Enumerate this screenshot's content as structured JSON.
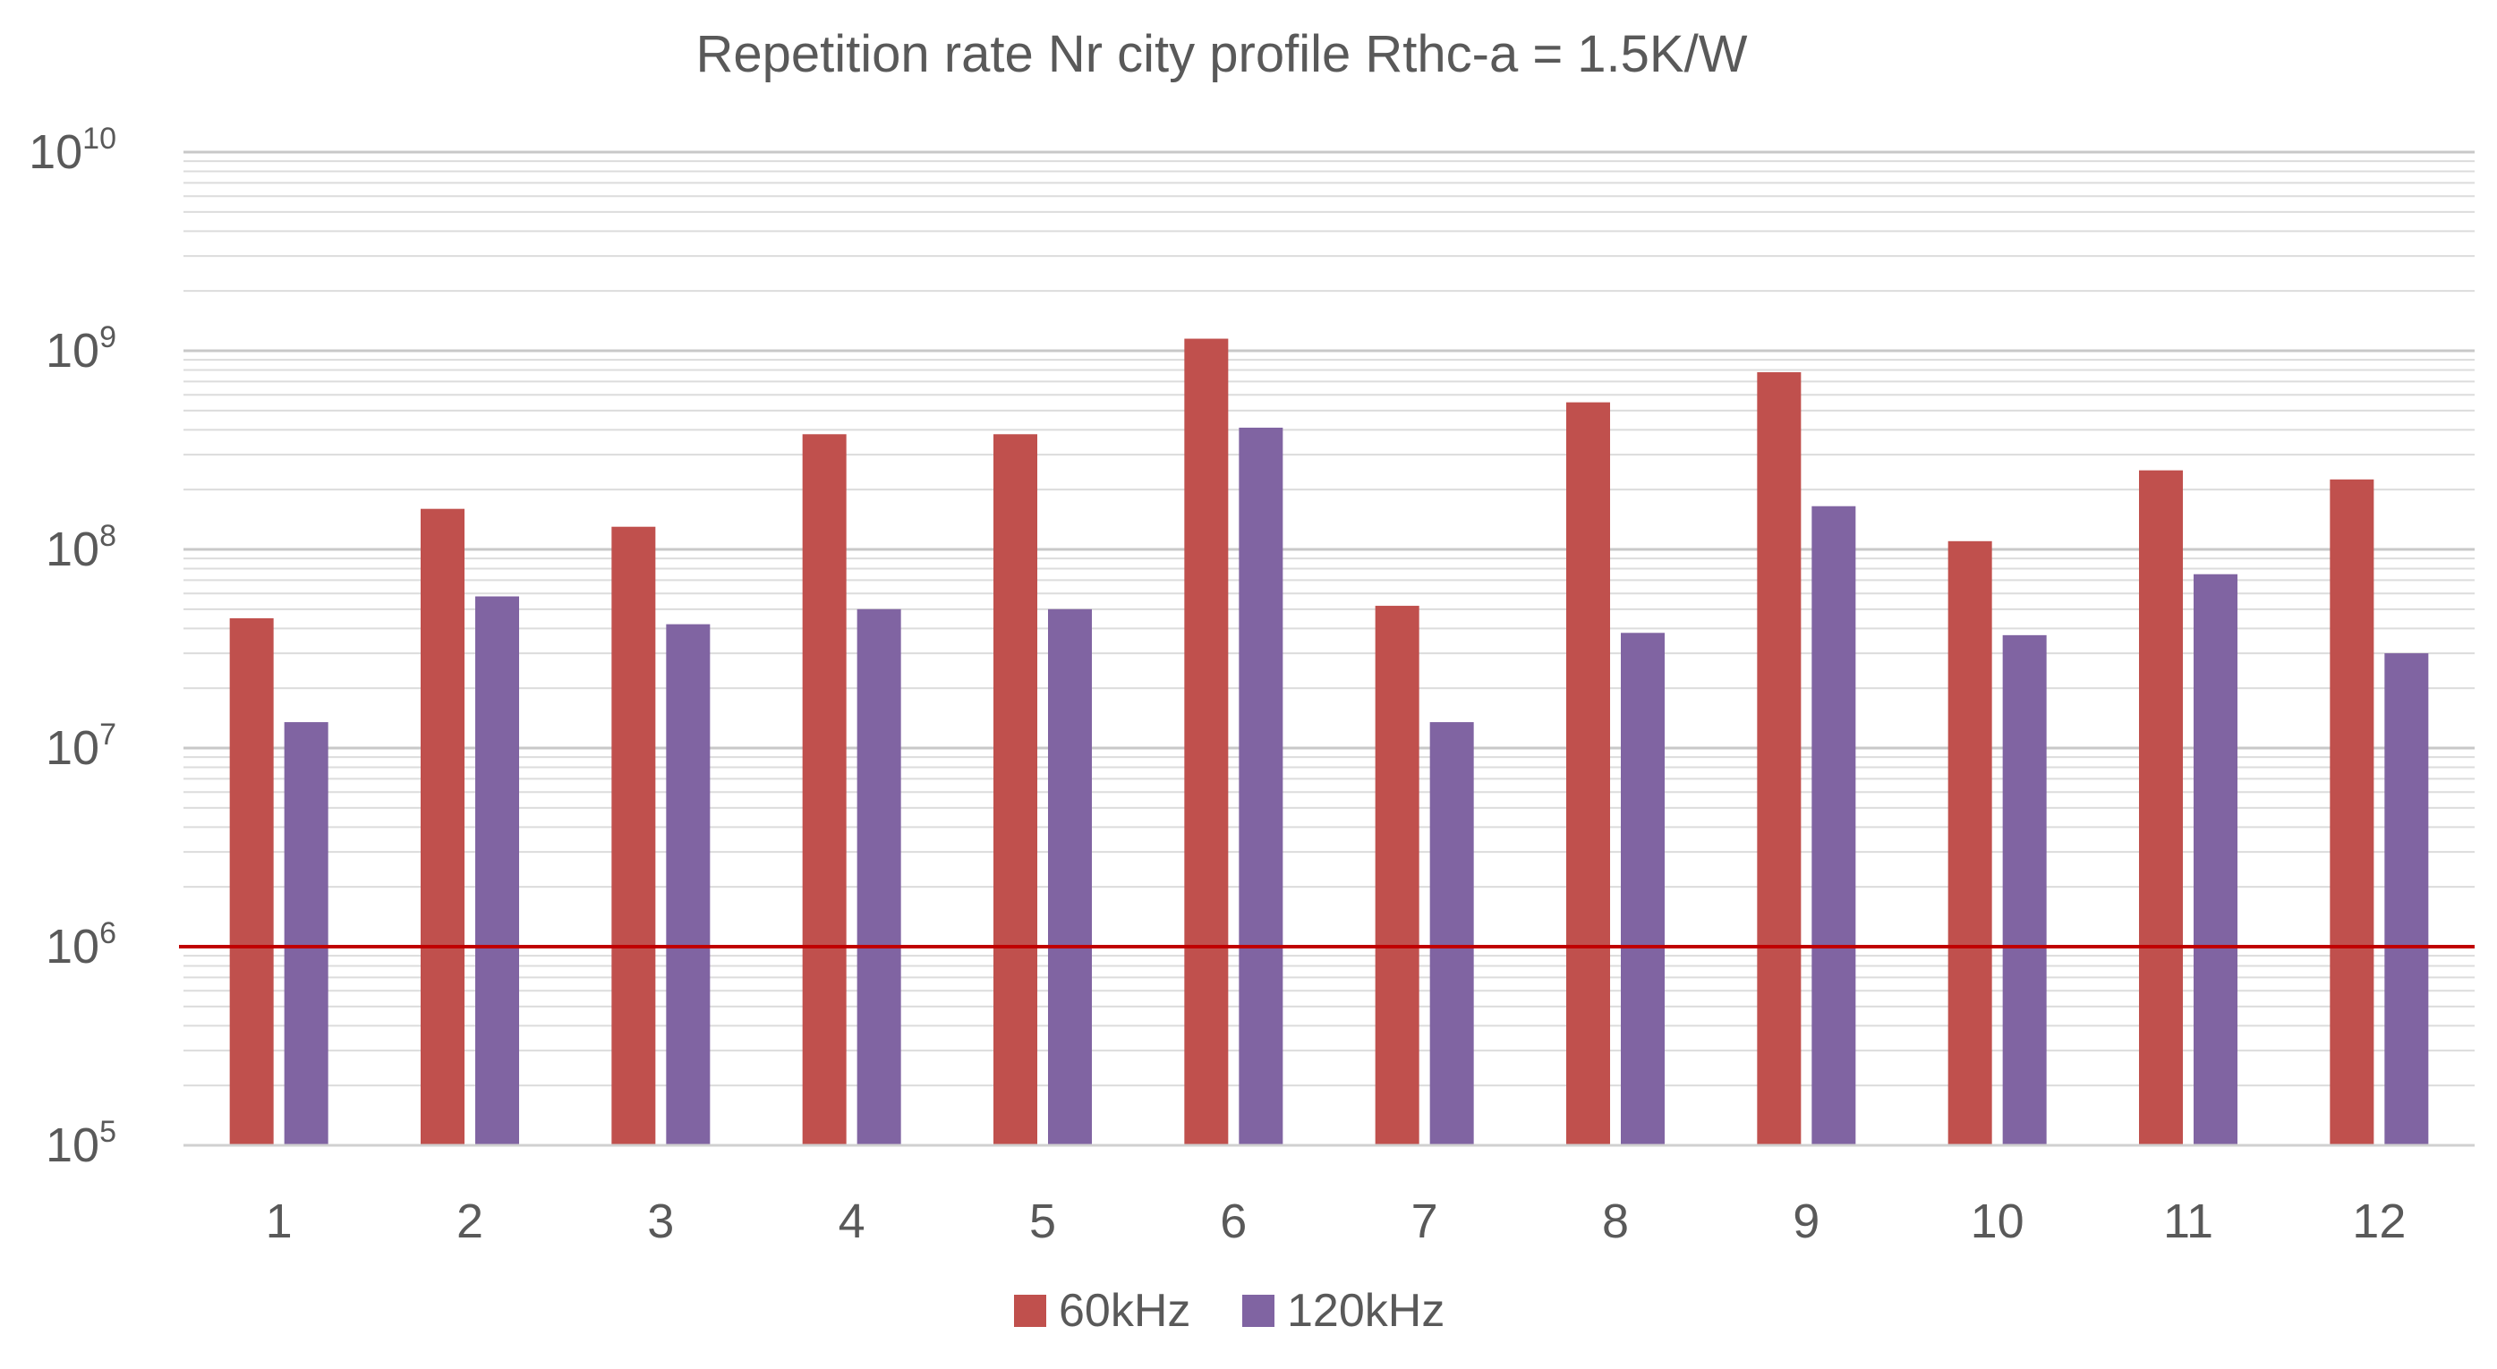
{
  "chart_data": {
    "type": "bar",
    "title": "Repetition rate Nr city profile Rthc-a = 1.5K/W",
    "xlabel": "",
    "ylabel": "",
    "yscale": "log",
    "ylim": [
      100000,
      10000000000
    ],
    "y_ticks": [
      {
        "base": "10",
        "exp": "10",
        "value": 10000000000
      },
      {
        "base": "10",
        "exp": "9",
        "value": 1000000000
      },
      {
        "base": "10",
        "exp": "8",
        "value": 100000000
      },
      {
        "base": "10",
        "exp": "7",
        "value": 10000000
      },
      {
        "base": "10",
        "exp": "6",
        "value": 1000000
      },
      {
        "base": "10",
        "exp": "5",
        "value": 100000
      }
    ],
    "grid": true,
    "categories": [
      "1",
      "2",
      "3",
      "4",
      "5",
      "6",
      "7",
      "8",
      "9",
      "10",
      "11",
      "12"
    ],
    "series": [
      {
        "name": "60kHz",
        "color": "#c0504d",
        "values": [
          45000000,
          160000000,
          130000000,
          380000000,
          380000000,
          1150000000,
          52000000,
          550000000,
          780000000,
          110000000,
          250000000,
          225000000
        ]
      },
      {
        "name": "120kHz",
        "color": "#8064a2",
        "values": [
          13500000,
          58000000,
          42000000,
          50000000,
          50000000,
          410000000,
          13500000,
          38000000,
          165000000,
          37000000,
          75000000,
          30000000
        ]
      }
    ],
    "reference_line": {
      "value": 1000000,
      "color": "#c00000"
    },
    "legend_position": "bottom-center"
  }
}
